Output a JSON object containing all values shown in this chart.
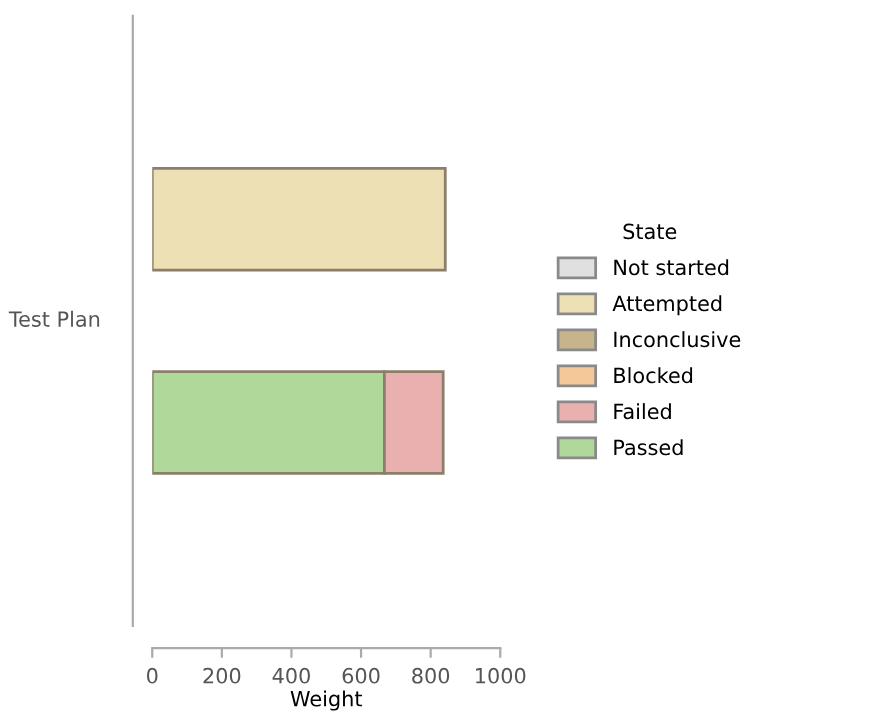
{
  "chart_data": {
    "type": "bar",
    "orientation": "horizontal",
    "stacked": true,
    "categories": [
      null,
      null
    ],
    "ylabel": "Test Plan",
    "xlabel": "Weight",
    "legend_title": "State",
    "legend": "right",
    "xlim": [
      0,
      1000
    ],
    "xticks": [
      0,
      200,
      400,
      600,
      800,
      1000
    ],
    "grid": false,
    "series": [
      {
        "name": "Passed",
        "color": "#b0d89a",
        "values": [
          null,
          667
        ]
      },
      {
        "name": "Failed",
        "color": "#eab0b0",
        "values": [
          null,
          169
        ]
      },
      {
        "name": "Blocked",
        "color": "#f5c89a",
        "values": [
          null,
          null
        ]
      },
      {
        "name": "Inconclusive",
        "color": "#c8b48a",
        "values": [
          null,
          null
        ]
      },
      {
        "name": "Attempted",
        "color": "#eee0b5",
        "values": [
          842,
          null
        ]
      },
      {
        "name": "Not started",
        "color": "#e0e0e0",
        "values": [
          null,
          null
        ]
      }
    ]
  }
}
